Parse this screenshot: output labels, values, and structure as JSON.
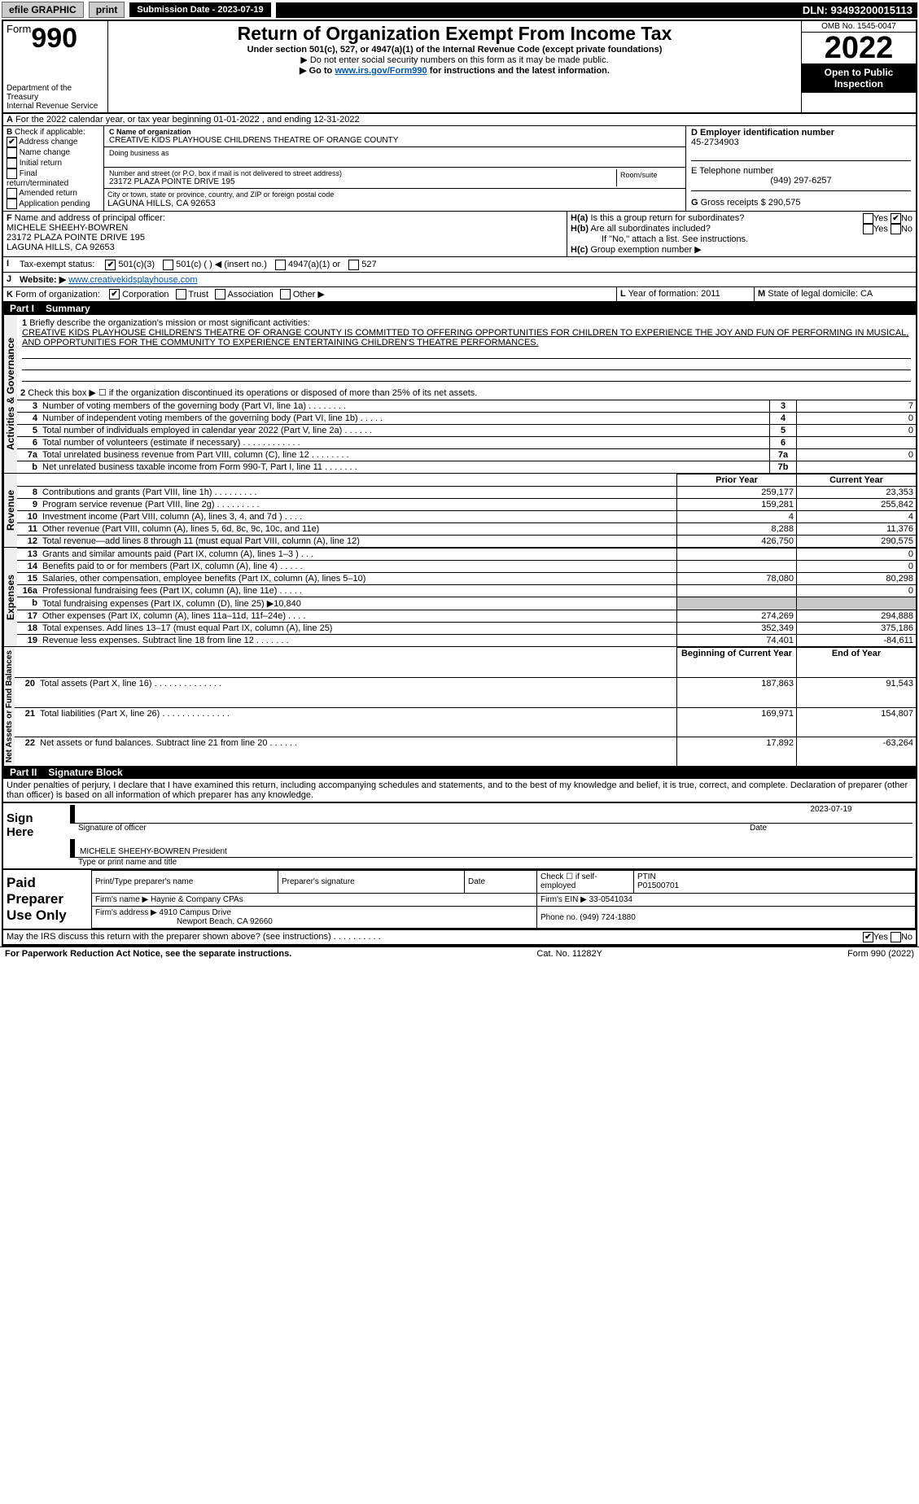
{
  "colors": {
    "black": "#000000",
    "white": "#ffffff",
    "link": "#0055b3",
    "shade": "#c8c8c8",
    "gray_btn": "#cccccc"
  },
  "topbar": {
    "efile": "efile GRAPHIC",
    "print": "print",
    "subdate_label": "Submission Date - 2023-07-19",
    "dln": "DLN: 93493200015113"
  },
  "header": {
    "form_word": "Form",
    "form_no": "990",
    "title": "Return of Organization Exempt From Income Tax",
    "sub": "Under section 501(c), 527, or 4947(a)(1) of the Internal Revenue Code (except private foundations)",
    "line1": "▶ Do not enter social security numbers on this form as it may be made public.",
    "line2_pre": "▶ Go to ",
    "line2_link": "www.irs.gov/Form990",
    "line2_post": " for instructions and the latest information.",
    "dept": "Department of the Treasury",
    "irs": "Internal Revenue Service",
    "omb": "OMB No. 1545-0047",
    "year": "2022",
    "open": "Open to Public Inspection"
  },
  "A": {
    "text": "For the 2022 calendar year, or tax year beginning 01-01-2022    , and ending 12-31-2022",
    "label": "A"
  },
  "B": {
    "label": "B",
    "check": "Check if applicable:",
    "items": [
      "Address change",
      "Name change",
      "Initial return",
      "Final return/terminated",
      "Amended return",
      "Application pending"
    ],
    "checked_idx": 0
  },
  "C": {
    "name_label": "C Name of organization",
    "name": "CREATIVE KIDS PLAYHOUSE CHILDRENS THEATRE OF ORANGE COUNTY",
    "dba_label": "Doing business as",
    "street_label": "Number and street (or P.O. box if mail is not delivered to street address)",
    "room_label": "Room/suite",
    "street": "23172 PLAZA POINTE DRIVE 195",
    "city_label": "City or town, state or province, country, and ZIP or foreign postal code",
    "city": "LAGUNA HILLS, CA  92653"
  },
  "D": {
    "label": "D Employer identification number",
    "val": "45-2734903"
  },
  "E": {
    "label": "E Telephone number",
    "val": "(949) 297-6257"
  },
  "G": {
    "label": "G",
    "text": "Gross receipts $ 290,575"
  },
  "F": {
    "label": "F",
    "text": "Name and address of principal officer:",
    "name": "MICHELE SHEEHY-BOWREN",
    "addr1": "23172 PLAZA POINTE DRIVE 195",
    "addr2": "LAGUNA HILLS, CA  92653"
  },
  "H": {
    "a": "Is this a group return for subordinates?",
    "b": "Are all subordinates included?",
    "b_note": "If \"No,\" attach a list. See instructions.",
    "c": "Group exemption number ▶",
    "ha_label": "H(a)",
    "hb_label": "H(b)",
    "hc_label": "H(c)",
    "yes": "Yes",
    "no": "No"
  },
  "I": {
    "label": "I",
    "text": "Tax-exempt status:",
    "opts": [
      "501(c)(3)",
      "501(c) (   ) ◀ (insert no.)",
      "4947(a)(1) or",
      "527"
    ],
    "checked": 0
  },
  "J": {
    "label": "J",
    "text": "Website: ▶",
    "val": "www.creativekidsplayhouse.com"
  },
  "K": {
    "label": "K",
    "text": "Form of organization:",
    "opts": [
      "Corporation",
      "Trust",
      "Association",
      "Other ▶"
    ],
    "checked": 0
  },
  "L": {
    "label": "L",
    "text": "Year of formation: 2011"
  },
  "M": {
    "label": "M",
    "text": "State of legal domicile: CA"
  },
  "part1": {
    "label": "Part I",
    "title": "Summary"
  },
  "summary": {
    "l1_label": "1",
    "l1_text": "Briefly describe the organization's mission or most significant activities:",
    "mission": "CREATIVE KIDS PLAYHOUSE CHILDREN'S THEATRE OF ORANGE COUNTY IS COMMITTED TO OFFERING OPPORTUNITIES FOR CHILDREN TO EXPERIENCE THE JOY AND FUN OF PERFORMING IN MUSICAL, AND OPPORTUNITIES FOR THE COMMUNITY TO EXPERIENCE ENTERTAINING CHILDREN'S THEATRE PERFORMANCES.",
    "l2": "Check this box ▶ ☐ if the organization discontinued its operations or disposed of more than 25% of its net assets.",
    "side_gov": "Activities & Governance",
    "side_rev": "Revenue",
    "side_exp": "Expenses",
    "side_net": "Net Assets or Fund Balances",
    "lines_gov": [
      {
        "n": "3",
        "t": "Number of voting members of the governing body (Part VI, line 1a)   .    .    .    .    .    .    .    .",
        "ln": "3",
        "v": "7"
      },
      {
        "n": "4",
        "t": "Number of independent voting members of the governing body (Part VI, line 1b)   .    .    .    .    .",
        "ln": "4",
        "v": "0"
      },
      {
        "n": "5",
        "t": "Total number of individuals employed in calendar year 2022 (Part V, line 2a)   .    .    .    .    .    .",
        "ln": "5",
        "v": "0"
      },
      {
        "n": "6",
        "t": "Total number of volunteers (estimate if necessary)    .    .    .    .    .    .    .    .    .    .    .    .",
        "ln": "6",
        "v": ""
      },
      {
        "n": "7a",
        "t": "Total unrelated business revenue from Part VIII, column (C), line 12    .    .    .    .    .    .    .    .",
        "ln": "7a",
        "v": "0"
      },
      {
        "n": "b",
        "t": "Net unrelated business taxable income from Form 990-T, Part I, line 11    .    .    .    .    .    .    .",
        "ln": "7b",
        "v": ""
      }
    ],
    "prior_hdr": "Prior Year",
    "cur_hdr": "Current Year",
    "lines_rev": [
      {
        "n": "8",
        "t": "Contributions and grants (Part VIII, line 1h)    .    .    .    .    .    .    .    .    .",
        "p": "259,177",
        "c": "23,353"
      },
      {
        "n": "9",
        "t": "Program service revenue (Part VIII, line 2g)    .    .    .    .    .    .    .    .    .",
        "p": "159,281",
        "c": "255,842"
      },
      {
        "n": "10",
        "t": "Investment income (Part VIII, column (A), lines 3, 4, and 7d )    .    .    .    .",
        "p": "4",
        "c": "4"
      },
      {
        "n": "11",
        "t": "Other revenue (Part VIII, column (A), lines 5, 6d, 8c, 9c, 10c, and 11e)",
        "p": "8,288",
        "c": "11,376"
      },
      {
        "n": "12",
        "t": "Total revenue—add lines 8 through 11 (must equal Part VIII, column (A), line 12)",
        "p": "426,750",
        "c": "290,575"
      }
    ],
    "lines_exp": [
      {
        "n": "13",
        "t": "Grants and similar amounts paid (Part IX, column (A), lines 1–3 )   .    .    .",
        "p": "",
        "c": "0"
      },
      {
        "n": "14",
        "t": "Benefits paid to or for members (Part IX, column (A), line 4)   .    .    .    .    .",
        "p": "",
        "c": "0"
      },
      {
        "n": "15",
        "t": "Salaries, other compensation, employee benefits (Part IX, column (A), lines 5–10)",
        "p": "78,080",
        "c": "80,298"
      },
      {
        "n": "16a",
        "t": "Professional fundraising fees (Part IX, column (A), line 11e)   .    .    .    .    .",
        "p": "",
        "c": "0"
      },
      {
        "n": "b",
        "t": "Total fundraising expenses (Part IX, column (D), line 25) ▶10,840",
        "p": "SHADE",
        "c": "SHADE"
      },
      {
        "n": "17",
        "t": "Other expenses (Part IX, column (A), lines 11a–11d, 11f–24e)    .    .    .    .",
        "p": "274,269",
        "c": "294,888"
      },
      {
        "n": "18",
        "t": "Total expenses. Add lines 13–17 (must equal Part IX, column (A), line 25)",
        "p": "352,349",
        "c": "375,186"
      },
      {
        "n": "19",
        "t": "Revenue less expenses. Subtract line 18 from line 12   .    .    .    .    .    .    .",
        "p": "74,401",
        "c": "-84,611"
      }
    ],
    "beg_hdr": "Beginning of Current Year",
    "end_hdr": "End of Year",
    "lines_net": [
      {
        "n": "20",
        "t": "Total assets (Part X, line 16)   .    .    .    .    .    .    .    .    .    .    .    .    .    .",
        "p": "187,863",
        "c": "91,543"
      },
      {
        "n": "21",
        "t": "Total liabilities (Part X, line 26)   .    .    .    .    .    .    .    .    .    .    .    .    .    .",
        "p": "169,971",
        "c": "154,807"
      },
      {
        "n": "22",
        "t": "Net assets or fund balances. Subtract line 21 from line 20   .    .    .    .    .    .",
        "p": "17,892",
        "c": "-63,264"
      }
    ]
  },
  "part2": {
    "label": "Part II",
    "title": "Signature Block",
    "jurat": "Under penalties of perjury, I declare that I have examined this return, including accompanying schedules and statements, and to the best of my knowledge and belief, it is true, correct, and complete. Declaration of preparer (other than officer) is based on all information of which preparer has any knowledge."
  },
  "sign": {
    "here": "Sign Here",
    "sig_officer": "Signature of officer",
    "date": "Date",
    "date_val": "2023-07-19",
    "name": "MICHELE SHEEHY-BOWREN  President",
    "type_print": "Type or print name and title"
  },
  "paid": {
    "left": "Paid Preparer Use Only",
    "h1": "Print/Type preparer's name",
    "h2": "Preparer's signature",
    "h3": "Date",
    "h4": "Check ☐ if self-employed",
    "h5": "PTIN",
    "ptin": "P01500701",
    "firm_name_l": "Firm's name   ▶",
    "firm_name": "Haynie & Company CPAs",
    "firm_ein_l": "Firm's EIN ▶",
    "firm_ein": "33-0541034",
    "firm_addr_l": "Firm's address ▶",
    "firm_addr1": "4910 Campus Drive",
    "firm_addr2": "Newport Beach, CA  92660",
    "phone_l": "Phone no.",
    "phone": "(949) 724-1880"
  },
  "may_irs": "May the IRS discuss this return with the preparer shown above? (see instructions)    .    .    .    .    .    .    .    .    .    .",
  "footer": {
    "pra": "For Paperwork Reduction Act Notice, see the separate instructions.",
    "cat": "Cat. No. 11282Y",
    "form": "Form 990 (2022)"
  }
}
